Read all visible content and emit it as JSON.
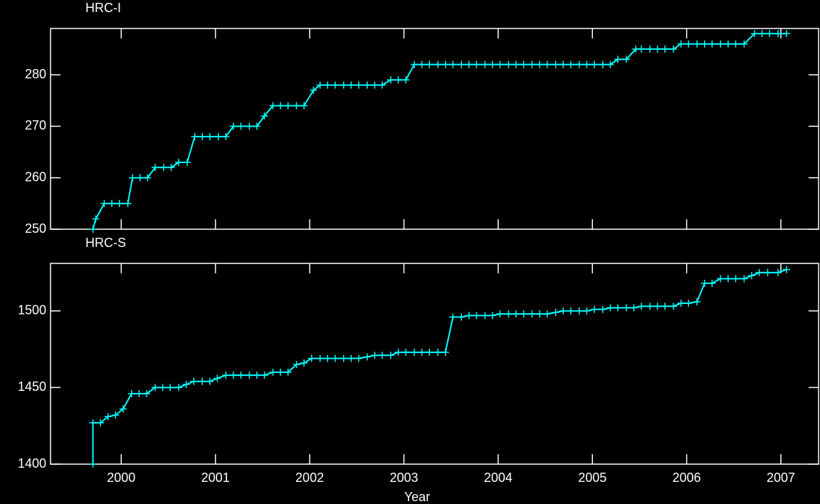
{
  "chart_data": [
    {
      "type": "line",
      "title": "HRC-I",
      "color": "#00ffff",
      "x": [
        1999.7,
        1999.73,
        1999.82,
        1999.9,
        1999.98,
        2000.07,
        2000.12,
        2000.2,
        2000.28,
        2000.36,
        2000.45,
        2000.53,
        2000.61,
        2000.7,
        2000.78,
        2000.86,
        2000.94,
        2001.03,
        2001.11,
        2001.19,
        2001.27,
        2001.36,
        2001.44,
        2001.52,
        2001.61,
        2001.69,
        2001.77,
        2001.86,
        2001.94,
        2002.04,
        2002.11,
        2002.19,
        2002.27,
        2002.36,
        2002.44,
        2002.52,
        2002.61,
        2002.69,
        2002.77,
        2002.86,
        2002.94,
        2003.02,
        2003.11,
        2003.19,
        2003.27,
        2003.36,
        2003.44,
        2003.52,
        2003.61,
        2003.69,
        2003.77,
        2003.86,
        2003.94,
        2004.02,
        2004.11,
        2004.19,
        2004.27,
        2004.36,
        2004.44,
        2004.52,
        2004.61,
        2004.69,
        2004.77,
        2004.86,
        2004.94,
        2005.02,
        2005.11,
        2005.19,
        2005.27,
        2005.36,
        2005.46,
        2005.52,
        2005.61,
        2005.69,
        2005.77,
        2005.86,
        2005.94,
        2006.02,
        2006.11,
        2006.19,
        2006.27,
        2006.36,
        2006.44,
        2006.52,
        2006.61,
        2006.72,
        2006.8,
        2006.88,
        2006.97,
        2007.06
      ],
      "values": [
        250,
        252,
        255,
        255,
        255,
        255,
        260,
        260,
        260,
        262,
        262,
        262,
        263,
        263,
        268,
        268,
        268,
        268,
        268,
        270,
        270,
        270,
        270,
        272,
        274,
        274,
        274,
        274,
        274,
        277,
        278,
        278,
        278,
        278,
        278,
        278,
        278,
        278,
        278,
        279,
        279,
        279,
        282,
        282,
        282,
        282,
        282,
        282,
        282,
        282,
        282,
        282,
        282,
        282,
        282,
        282,
        282,
        282,
        282,
        282,
        282,
        282,
        282,
        282,
        282,
        282,
        282,
        282,
        283,
        283,
        285,
        285,
        285,
        285,
        285,
        285,
        286,
        286,
        286,
        286,
        286,
        286,
        286,
        286,
        286,
        288,
        288,
        288,
        288,
        288
      ],
      "xlim": [
        1999.25,
        2007.4
      ],
      "ylim": [
        250,
        289
      ],
      "xticks": [
        2000,
        2001,
        2002,
        2003,
        2004,
        2005,
        2006,
        2007
      ],
      "yticks": [
        250,
        260,
        270,
        280
      ]
    },
    {
      "type": "line",
      "title": "HRC-S",
      "color": "#00ffff",
      "xlabel": "Year",
      "x": [
        1999.7,
        1999.7,
        1999.78,
        1999.86,
        1999.94,
        2000.02,
        2000.11,
        2000.19,
        2000.27,
        2000.36,
        2000.44,
        2000.52,
        2000.61,
        2000.69,
        2000.77,
        2000.86,
        2000.94,
        2001.02,
        2001.11,
        2001.19,
        2001.27,
        2001.36,
        2001.44,
        2001.52,
        2001.61,
        2001.69,
        2001.77,
        2001.86,
        2001.94,
        2002.02,
        2002.11,
        2002.19,
        2002.27,
        2002.36,
        2002.44,
        2002.52,
        2002.61,
        2002.69,
        2002.77,
        2002.86,
        2002.94,
        2003.02,
        2003.11,
        2003.19,
        2003.27,
        2003.36,
        2003.44,
        2003.52,
        2003.61,
        2003.69,
        2003.77,
        2003.86,
        2003.94,
        2004.02,
        2004.11,
        2004.19,
        2004.27,
        2004.36,
        2004.44,
        2004.52,
        2004.61,
        2004.69,
        2004.77,
        2004.86,
        2004.94,
        2005.02,
        2005.11,
        2005.19,
        2005.27,
        2005.36,
        2005.44,
        2005.52,
        2005.61,
        2005.69,
        2005.77,
        2005.86,
        2005.94,
        2006.02,
        2006.11,
        2006.19,
        2006.27,
        2006.36,
        2006.44,
        2006.52,
        2006.61,
        2006.69,
        2006.77,
        2006.86,
        2006.97,
        2007.06
      ],
      "values": [
        1400,
        1427,
        1427,
        1431,
        1432,
        1436,
        1446,
        1446,
        1446,
        1450,
        1450,
        1450,
        1450,
        1452,
        1454,
        1454,
        1454,
        1456,
        1458,
        1458,
        1458,
        1458,
        1458,
        1458,
        1460,
        1460,
        1460,
        1465,
        1466,
        1469,
        1469,
        1469,
        1469,
        1469,
        1469,
        1469,
        1470,
        1471,
        1471,
        1471,
        1473,
        1473,
        1473,
        1473,
        1473,
        1473,
        1473,
        1496,
        1496,
        1497,
        1497,
        1497,
        1497,
        1498,
        1498,
        1498,
        1498,
        1498,
        1498,
        1498,
        1499,
        1500,
        1500,
        1500,
        1500,
        1501,
        1501,
        1502,
        1502,
        1502,
        1502,
        1503,
        1503,
        1503,
        1503,
        1503,
        1505,
        1505,
        1506,
        1518,
        1518,
        1521,
        1521,
        1521,
        1521,
        1523,
        1525,
        1525,
        1525,
        1527
      ],
      "xlim": [
        1999.25,
        2007.4
      ],
      "ylim": [
        1400,
        1531
      ],
      "xticks": [
        2000,
        2001,
        2002,
        2003,
        2004,
        2005,
        2006,
        2007
      ],
      "yticks": [
        1400,
        1450,
        1500
      ]
    }
  ]
}
